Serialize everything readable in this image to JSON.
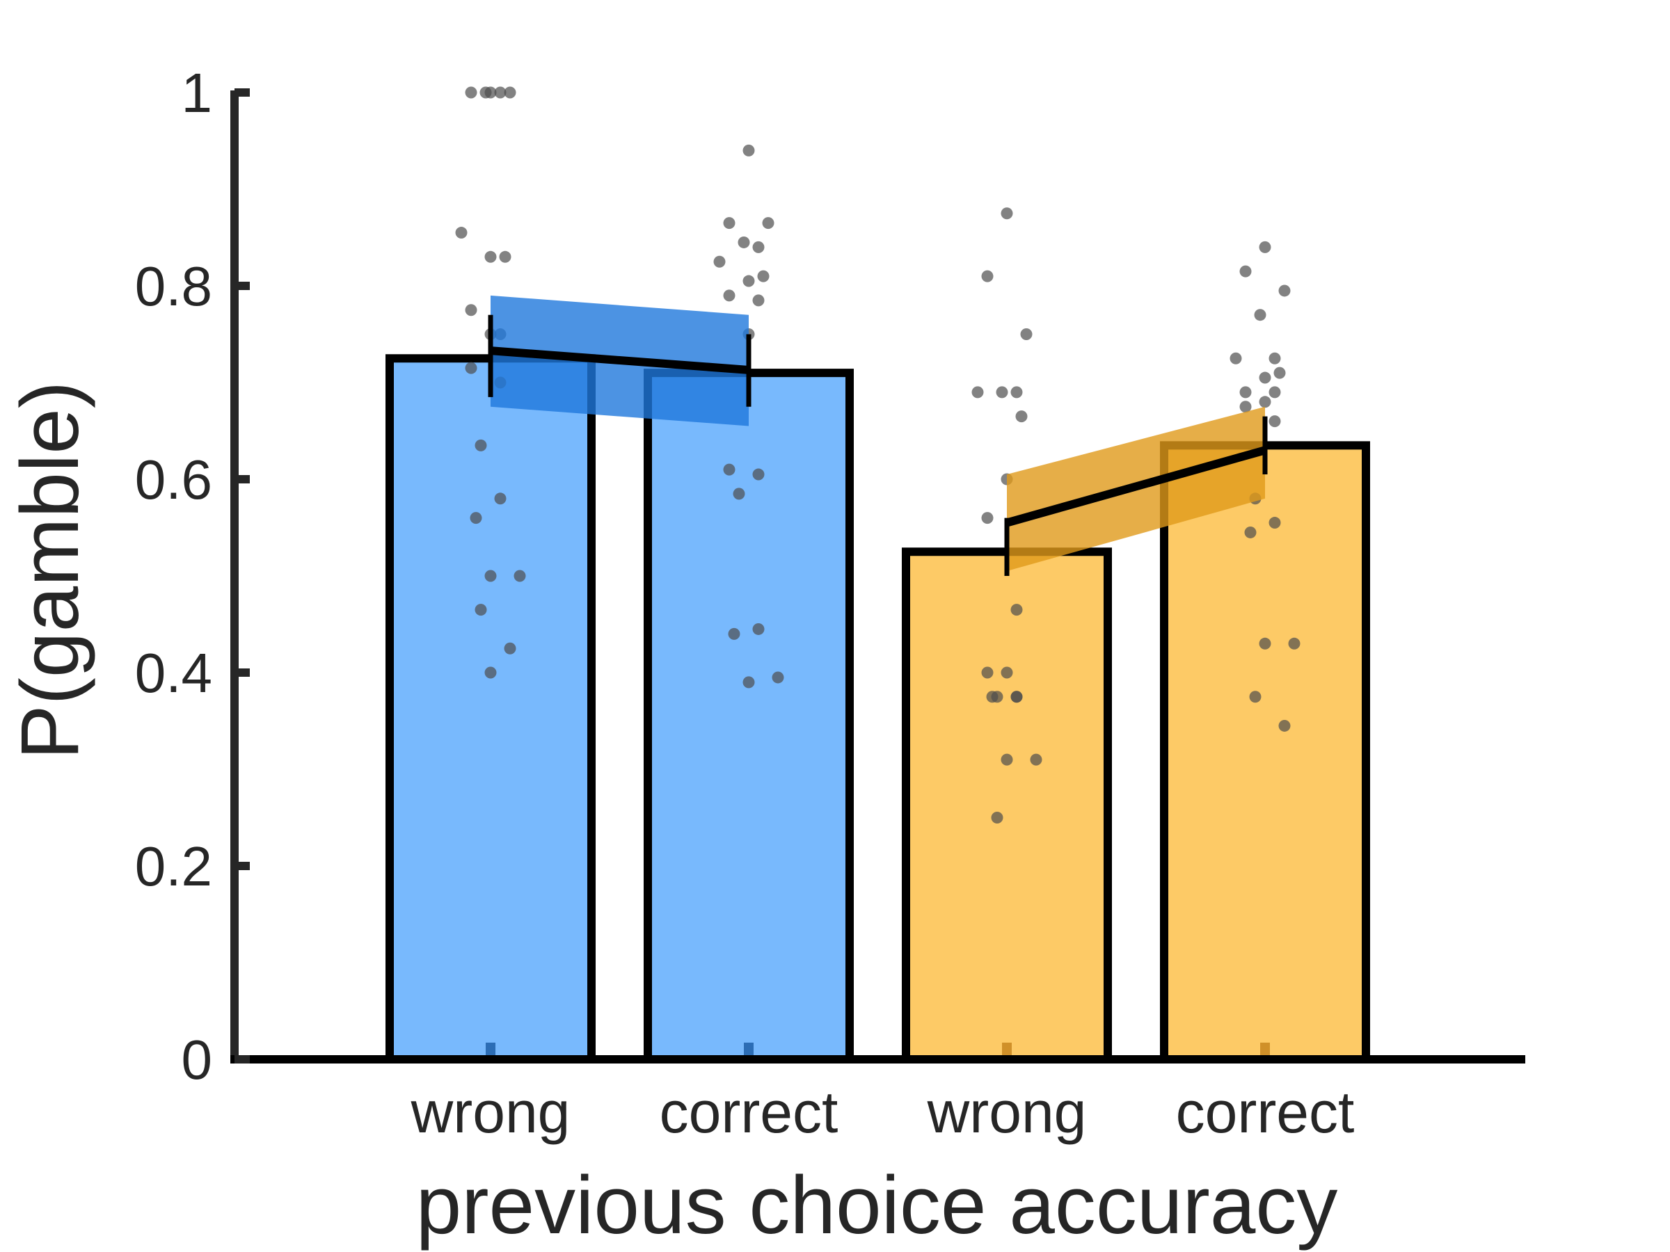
{
  "chart_data": {
    "type": "bar",
    "ylabel": "P(gamble)",
    "xlabel": "previous choice accuracy",
    "ylim": [
      0,
      1
    ],
    "yticks": [
      "0",
      "0.2",
      "0.4",
      "0.6",
      "0.8",
      "1"
    ],
    "categories": [
      "wrong",
      "correct",
      "wrong",
      "correct"
    ],
    "bar_colors": [
      "#78b9fd",
      "#78b9fd",
      "#fdca66",
      "#fdca66"
    ],
    "ribbon_colors": [
      "#1f78dc",
      "#e09a1a"
    ],
    "values": [
      0.725,
      0.71,
      0.525,
      0.635
    ],
    "groups": [
      {
        "bars": [
          0,
          1
        ],
        "mean_line": [
          0.733,
          0.713
        ],
        "ribbon": {
          "lower": [
            0.675,
            0.655
          ],
          "upper": [
            0.79,
            0.77
          ]
        },
        "errorbars": [
          [
            0.685,
            0.77
          ],
          [
            0.675,
            0.75
          ]
        ]
      },
      {
        "bars": [
          2,
          3
        ],
        "mean_line": [
          0.555,
          0.63
        ],
        "ribbon": {
          "lower": [
            0.505,
            0.58
          ],
          "upper": [
            0.605,
            0.675
          ]
        },
        "errorbars": [
          [
            0.5,
            0.56
          ],
          [
            0.605,
            0.665
          ]
        ]
      }
    ],
    "points": [
      [
        1.0,
        1.0,
        1.0,
        1.0,
        1.0,
        0.855,
        0.83,
        0.83,
        0.775,
        0.75,
        0.75,
        0.715,
        0.7,
        0.635,
        0.58,
        0.56,
        0.5,
        0.5,
        0.465,
        0.425,
        0.4
      ],
      [
        0.94,
        0.865,
        0.865,
        0.845,
        0.84,
        0.825,
        0.81,
        0.805,
        0.79,
        0.785,
        0.75,
        0.61,
        0.605,
        0.585,
        0.445,
        0.44,
        0.395,
        0.39
      ],
      [
        0.875,
        0.81,
        0.75,
        0.69,
        0.69,
        0.69,
        0.665,
        0.6,
        0.56,
        0.465,
        0.4,
        0.4,
        0.375,
        0.375,
        0.375,
        0.375,
        0.31,
        0.31,
        0.25
      ],
      [
        0.84,
        0.815,
        0.795,
        0.77,
        0.725,
        0.725,
        0.71,
        0.705,
        0.69,
        0.69,
        0.68,
        0.675,
        0.66,
        0.58,
        0.555,
        0.545,
        0.43,
        0.43,
        0.375,
        0.345
      ]
    ]
  }
}
